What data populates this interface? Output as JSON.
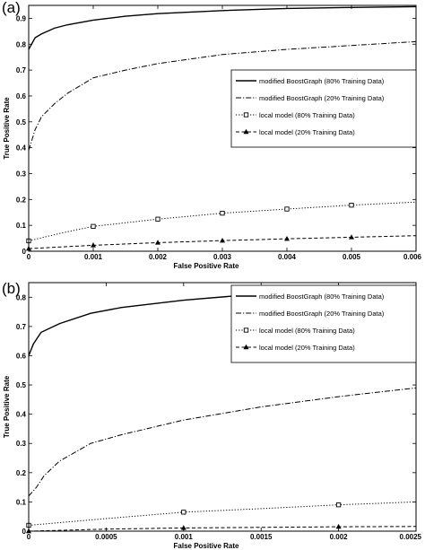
{
  "chart_data": [
    {
      "type": "line",
      "panel_label": "(a)",
      "xlabel": "False Positive Rate",
      "ylabel": "True Positive Rate",
      "xlim": [
        0,
        0.006
      ],
      "ylim": [
        0,
        0.95
      ],
      "xticks": [
        0,
        0.001,
        0.002,
        0.003,
        0.004,
        0.005,
        0.006
      ],
      "xtick_labels": [
        "0",
        "0.001",
        "0.002",
        "0.003",
        "0.004",
        "0.005",
        "0.006"
      ],
      "yticks": [
        0,
        0.1,
        0.2,
        0.3,
        0.4,
        0.5,
        0.6,
        0.7,
        0.8,
        0.9
      ],
      "ytick_labels": [
        "0",
        "0.1",
        "0.2",
        "0.3",
        "0.4",
        "0.5",
        "0.6",
        "0.7",
        "0.8",
        "0.9"
      ],
      "legend_position": "center-right",
      "series": [
        {
          "name": "modified BoostGraph (80% Training Data)",
          "style": "solid",
          "marker": "none",
          "x": [
            0,
            0.0001,
            0.0002,
            0.0004,
            0.0006,
            0.001,
            0.0015,
            0.002,
            0.003,
            0.004,
            0.005,
            0.006
          ],
          "y": [
            0.78,
            0.825,
            0.84,
            0.862,
            0.875,
            0.893,
            0.908,
            0.918,
            0.93,
            0.938,
            0.942,
            0.945
          ]
        },
        {
          "name": "modified BoostGraph (20% Training Data)",
          "style": "dashdot",
          "marker": "none",
          "x": [
            0,
            5e-05,
            0.0001,
            0.0002,
            0.0004,
            0.0006,
            0.001,
            0.0015,
            0.002,
            0.003,
            0.004,
            0.005,
            0.006
          ],
          "y": [
            0.39,
            0.43,
            0.47,
            0.52,
            0.57,
            0.61,
            0.67,
            0.7,
            0.725,
            0.76,
            0.78,
            0.795,
            0.81
          ]
        },
        {
          "name": "local model (80% Training Data)",
          "style": "dotted",
          "marker": "square",
          "x": [
            0,
            0.0005,
            0.001,
            0.002,
            0.003,
            0.004,
            0.005,
            0.006
          ],
          "y": [
            0.04,
            0.07,
            0.096,
            0.124,
            0.147,
            0.163,
            0.178,
            0.19
          ],
          "marker_x": [
            0,
            0.001,
            0.002,
            0.003,
            0.004,
            0.005
          ]
        },
        {
          "name": "local model (20% Training Data)",
          "style": "dashed",
          "marker": "triangle",
          "x": [
            0,
            0.001,
            0.002,
            0.003,
            0.004,
            0.005,
            0.006
          ],
          "y": [
            0.01,
            0.023,
            0.033,
            0.041,
            0.048,
            0.054,
            0.06
          ],
          "marker_x": [
            0,
            0.001,
            0.002,
            0.003,
            0.004,
            0.005
          ]
        }
      ]
    },
    {
      "type": "line",
      "panel_label": "(b)",
      "xlabel": "False Positive Rate",
      "ylabel": "True Positive Rate",
      "xlim": [
        0,
        0.0025
      ],
      "ylim": [
        0,
        0.85
      ],
      "xticks": [
        0,
        0.0005,
        0.001,
        0.0015,
        0.002,
        0.0025
      ],
      "xtick_labels": [
        "0",
        "0.0005",
        "0.001",
        "0.0015",
        "0.002",
        "0.0025"
      ],
      "yticks": [
        0,
        0.1,
        0.2,
        0.3,
        0.4,
        0.5,
        0.6,
        0.7,
        0.8
      ],
      "ytick_labels": [
        "0",
        "0.1",
        "0.2",
        "0.3",
        "0.4",
        "0.5",
        "0.6",
        "0.7",
        "0.8"
      ],
      "legend_position": "top-right",
      "series": [
        {
          "name": "modified BoostGraph (80% Training Data)",
          "style": "solid",
          "marker": "none",
          "x": [
            0,
            3e-05,
            8e-05,
            0.0002,
            0.0004,
            0.0006,
            0.001,
            0.0015,
            0.002,
            0.0025
          ],
          "y": [
            0.6,
            0.64,
            0.68,
            0.71,
            0.745,
            0.765,
            0.79,
            0.812,
            0.828,
            0.84
          ]
        },
        {
          "name": "modified BoostGraph (20% Training Data)",
          "style": "dashdot",
          "marker": "none",
          "x": [
            0,
            5e-05,
            0.0001,
            0.0002,
            0.0004,
            0.0006,
            0.001,
            0.0015,
            0.002,
            0.0025
          ],
          "y": [
            0.12,
            0.15,
            0.19,
            0.24,
            0.3,
            0.33,
            0.38,
            0.425,
            0.46,
            0.49
          ]
        },
        {
          "name": "local model (80% Training Data)",
          "style": "dotted",
          "marker": "square",
          "x": [
            0,
            0.0005,
            0.001,
            0.0015,
            0.002,
            0.0025
          ],
          "y": [
            0.02,
            0.043,
            0.065,
            0.077,
            0.09,
            0.1
          ],
          "marker_x": [
            0,
            0.001,
            0.002
          ]
        },
        {
          "name": "local model (20% Training Data)",
          "style": "dashed",
          "marker": "triangle",
          "x": [
            0,
            0.0005,
            0.001,
            0.0015,
            0.002,
            0.0025
          ],
          "y": [
            0.0,
            0.007,
            0.011,
            0.013,
            0.015,
            0.016
          ],
          "marker_x": [
            0,
            0.001,
            0.002
          ]
        }
      ]
    }
  ]
}
